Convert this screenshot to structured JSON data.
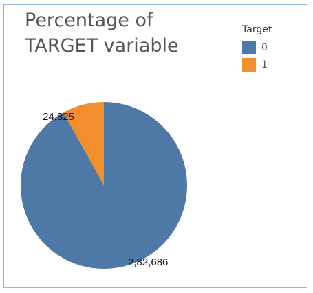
{
  "chart_data": {
    "type": "pie",
    "title": "Percentage of TARGET variable",
    "legend": {
      "title": "Target",
      "placement": "top-right"
    },
    "slices": [
      {
        "label": "0",
        "value": 282686,
        "display": "2,82,686",
        "color": "#4e79a7"
      },
      {
        "label": "1",
        "value": 24825,
        "display": "24,825",
        "color": "#f28e2b"
      }
    ]
  }
}
